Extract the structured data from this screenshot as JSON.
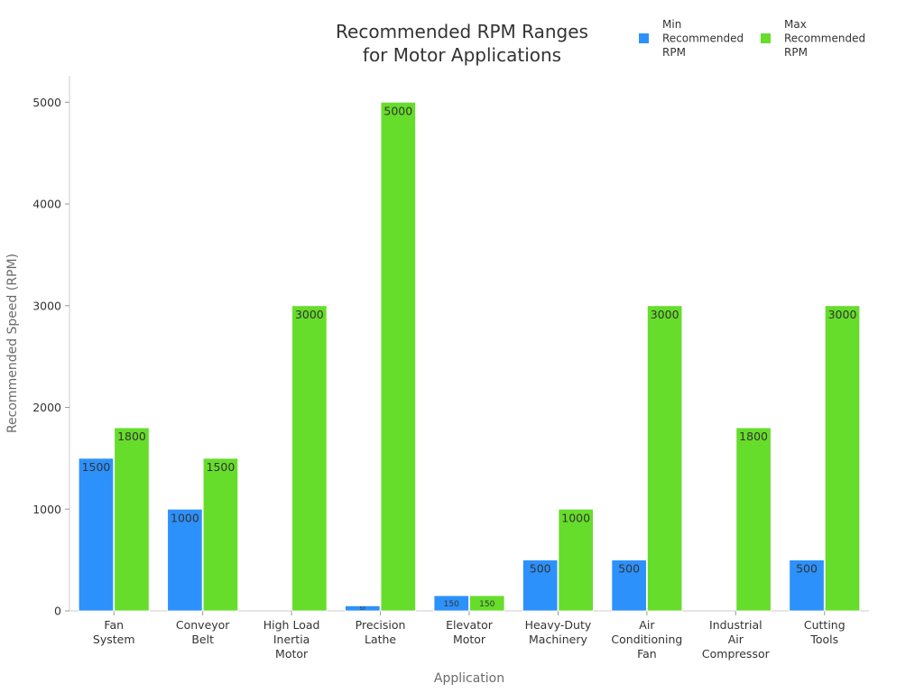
{
  "colors": {
    "min": "#2d91fb",
    "max": "#66dd2b"
  },
  "chart_data": {
    "type": "bar",
    "title": "Recommended RPM Ranges for Motor Applications",
    "title_lines": [
      "Recommended RPM Ranges",
      "for Motor Applications"
    ],
    "xlabel": "Application",
    "ylabel": "Recommended Speed (RPM)",
    "categories": [
      "Fan System",
      "Conveyor Belt",
      "High Load Inertia Motor",
      "Precision Lathe",
      "Elevator Motor",
      "Heavy-Duty Machinery",
      "Air Conditioning Fan",
      "Industrial Air Compressor",
      "Cutting Tools"
    ],
    "category_lines": [
      [
        "Fan",
        "System"
      ],
      [
        "Conveyor",
        "Belt"
      ],
      [
        "High Load",
        "Inertia",
        "Motor"
      ],
      [
        "Precision",
        "Lathe"
      ],
      [
        "Elevator",
        "Motor"
      ],
      [
        "Heavy-Duty",
        "Machinery"
      ],
      [
        "Air",
        "Conditioning",
        "Fan"
      ],
      [
        "Industrial",
        "Air",
        "Compressor"
      ],
      [
        "Cutting",
        "Tools"
      ]
    ],
    "series": [
      {
        "name": "Min Recommended RPM",
        "legend_lines": [
          "Min",
          "Recommended",
          "RPM"
        ],
        "color": "#2d91fb",
        "values": [
          1500,
          1000,
          null,
          50,
          150,
          500,
          500,
          null,
          500
        ]
      },
      {
        "name": "Max Recommended RPM",
        "legend_lines": [
          "Max",
          "Recommended",
          "RPM"
        ],
        "color": "#66dd2b",
        "values": [
          1800,
          1500,
          3000,
          5000,
          150,
          1000,
          3000,
          1800,
          3000
        ]
      }
    ],
    "ylim": [
      0,
      5260
    ],
    "yticks": [
      0,
      1000,
      2000,
      3000,
      4000,
      5000
    ],
    "grid": false,
    "legend_position": "top-right"
  }
}
